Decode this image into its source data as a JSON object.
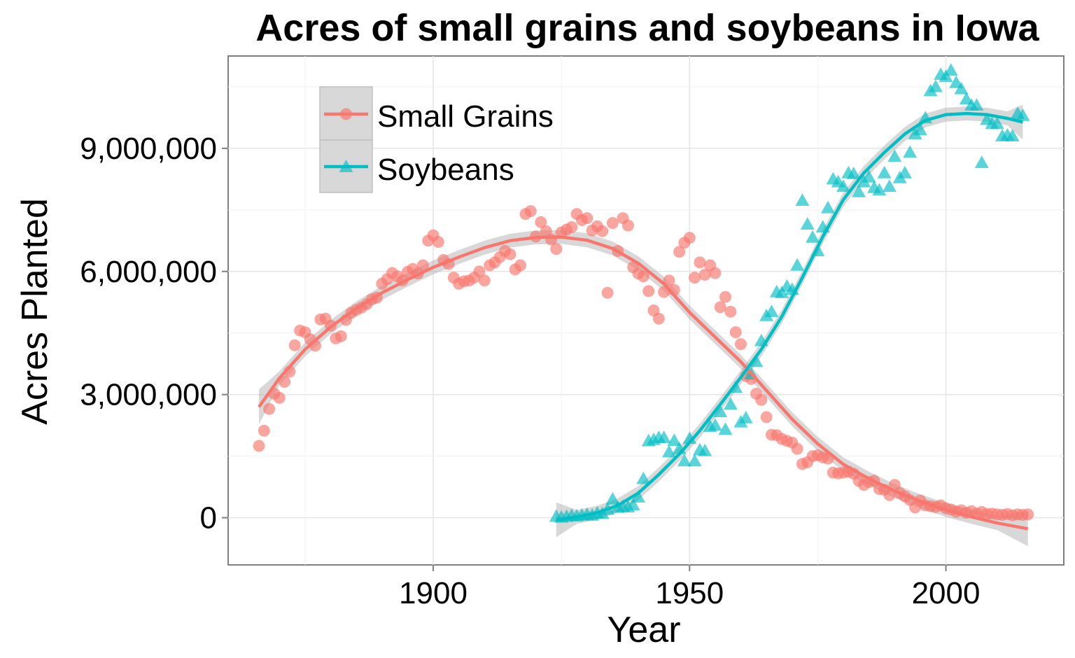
{
  "chart_data": {
    "type": "scatter",
    "title": "Acres of small grains and soybeans in Iowa",
    "xlabel": "Year",
    "ylabel": "Acres Planted",
    "xlim": [
      1860,
      2023
    ],
    "ylim": [
      -1150000,
      11250000
    ],
    "x_ticks": [
      1900,
      1950,
      2000
    ],
    "x_tick_labels": [
      "1900",
      "1950",
      "2000"
    ],
    "y_ticks": [
      0,
      3000000,
      6000000,
      9000000
    ],
    "y_tick_labels": [
      "0",
      "3,000,000",
      "6,000,000",
      "9,000,000"
    ],
    "grid": true,
    "legend_position": "top-left",
    "series": [
      {
        "name": "Small Grains",
        "color": "#F8766D",
        "marker": "circle",
        "points": [
          [
            1866,
            1750000
          ],
          [
            1867,
            2120000
          ],
          [
            1868,
            2650000
          ],
          [
            1869,
            3020000
          ],
          [
            1870,
            2920000
          ],
          [
            1871,
            3310000
          ],
          [
            1872,
            3560000
          ],
          [
            1873,
            4200000
          ],
          [
            1874,
            4560000
          ],
          [
            1875,
            4520000
          ],
          [
            1876,
            4350000
          ],
          [
            1877,
            4190000
          ],
          [
            1878,
            4830000
          ],
          [
            1879,
            4850000
          ],
          [
            1880,
            4680000
          ],
          [
            1881,
            4370000
          ],
          [
            1882,
            4420000
          ],
          [
            1883,
            4820000
          ],
          [
            1884,
            4990000
          ],
          [
            1885,
            5060000
          ],
          [
            1886,
            5120000
          ],
          [
            1887,
            5200000
          ],
          [
            1888,
            5320000
          ],
          [
            1889,
            5360000
          ],
          [
            1890,
            5700000
          ],
          [
            1891,
            5810000
          ],
          [
            1892,
            5960000
          ],
          [
            1893,
            5880000
          ],
          [
            1894,
            5780000
          ],
          [
            1895,
            5990000
          ],
          [
            1896,
            6060000
          ],
          [
            1897,
            5950000
          ],
          [
            1898,
            6150000
          ],
          [
            1899,
            6750000
          ],
          [
            1900,
            6880000
          ],
          [
            1901,
            6720000
          ],
          [
            1902,
            6280000
          ],
          [
            1903,
            6180000
          ],
          [
            1904,
            5850000
          ],
          [
            1905,
            5700000
          ],
          [
            1906,
            5760000
          ],
          [
            1907,
            5780000
          ],
          [
            1908,
            5850000
          ],
          [
            1909,
            6000000
          ],
          [
            1910,
            5780000
          ],
          [
            1911,
            6150000
          ],
          [
            1912,
            6220000
          ],
          [
            1913,
            6350000
          ],
          [
            1914,
            6500000
          ],
          [
            1915,
            6420000
          ],
          [
            1916,
            6050000
          ],
          [
            1917,
            6150000
          ],
          [
            1918,
            7400000
          ],
          [
            1919,
            7470000
          ],
          [
            1920,
            6850000
          ],
          [
            1921,
            7200000
          ],
          [
            1922,
            6980000
          ],
          [
            1923,
            6780000
          ],
          [
            1924,
            6550000
          ],
          [
            1925,
            6950000
          ],
          [
            1926,
            7020000
          ],
          [
            1927,
            7080000
          ],
          [
            1928,
            7400000
          ],
          [
            1929,
            7250000
          ],
          [
            1930,
            7300000
          ],
          [
            1931,
            7000000
          ],
          [
            1932,
            7100000
          ],
          [
            1933,
            6980000
          ],
          [
            1934,
            5480000
          ],
          [
            1935,
            7180000
          ],
          [
            1936,
            6500000
          ],
          [
            1937,
            7300000
          ],
          [
            1938,
            7120000
          ],
          [
            1939,
            6100000
          ],
          [
            1940,
            5950000
          ],
          [
            1941,
            5880000
          ],
          [
            1942,
            5520000
          ],
          [
            1943,
            5050000
          ],
          [
            1944,
            4850000
          ],
          [
            1945,
            5500000
          ],
          [
            1946,
            5780000
          ],
          [
            1947,
            5550000
          ],
          [
            1948,
            6480000
          ],
          [
            1949,
            6700000
          ],
          [
            1950,
            6820000
          ],
          [
            1951,
            5850000
          ],
          [
            1952,
            6220000
          ],
          [
            1953,
            5920000
          ],
          [
            1954,
            6150000
          ],
          [
            1955,
            5960000
          ],
          [
            1956,
            5130000
          ],
          [
            1957,
            5380000
          ],
          [
            1958,
            5020000
          ],
          [
            1959,
            4520000
          ],
          [
            1960,
            4230000
          ],
          [
            1961,
            3450000
          ],
          [
            1962,
            3380000
          ],
          [
            1963,
            3020000
          ],
          [
            1964,
            2870000
          ],
          [
            1965,
            2450000
          ],
          [
            1966,
            2020000
          ],
          [
            1967,
            2010000
          ],
          [
            1968,
            1920000
          ],
          [
            1969,
            1870000
          ],
          [
            1970,
            1830000
          ],
          [
            1971,
            1680000
          ],
          [
            1972,
            1310000
          ],
          [
            1973,
            1350000
          ],
          [
            1974,
            1500000
          ],
          [
            1975,
            1520000
          ],
          [
            1976,
            1470000
          ],
          [
            1977,
            1440000
          ],
          [
            1978,
            1100000
          ],
          [
            1979,
            1080000
          ],
          [
            1980,
            1100000
          ],
          [
            1981,
            1120000
          ],
          [
            1982,
            1070000
          ],
          [
            1983,
            900000
          ],
          [
            1984,
            800000
          ],
          [
            1985,
            870000
          ],
          [
            1986,
            900000
          ],
          [
            1987,
            700000
          ],
          [
            1988,
            680000
          ],
          [
            1989,
            550000
          ],
          [
            1990,
            800000
          ],
          [
            1991,
            600000
          ],
          [
            1992,
            520000
          ],
          [
            1993,
            430000
          ],
          [
            1994,
            250000
          ],
          [
            1995,
            420000
          ],
          [
            1996,
            300000
          ],
          [
            1997,
            280000
          ],
          [
            1998,
            260000
          ],
          [
            1999,
            300000
          ],
          [
            2000,
            230000
          ],
          [
            2001,
            200000
          ],
          [
            2002,
            150000
          ],
          [
            2003,
            180000
          ],
          [
            2004,
            120000
          ],
          [
            2005,
            160000
          ],
          [
            2006,
            100000
          ],
          [
            2007,
            140000
          ],
          [
            2008,
            90000
          ],
          [
            2009,
            100000
          ],
          [
            2010,
            80000
          ],
          [
            2011,
            70000
          ],
          [
            2012,
            90000
          ],
          [
            2013,
            60000
          ],
          [
            2014,
            80000
          ],
          [
            2015,
            70000
          ],
          [
            2016,
            80000
          ]
        ],
        "trend": [
          [
            1866,
            2700000
          ],
          [
            1870,
            3400000
          ],
          [
            1875,
            4100000
          ],
          [
            1880,
            4650000
          ],
          [
            1885,
            5100000
          ],
          [
            1890,
            5480000
          ],
          [
            1895,
            5800000
          ],
          [
            1900,
            6100000
          ],
          [
            1905,
            6350000
          ],
          [
            1910,
            6580000
          ],
          [
            1915,
            6750000
          ],
          [
            1920,
            6830000
          ],
          [
            1925,
            6840000
          ],
          [
            1930,
            6760000
          ],
          [
            1935,
            6560000
          ],
          [
            1940,
            6200000
          ],
          [
            1945,
            5700000
          ],
          [
            1950,
            5000000
          ],
          [
            1955,
            4400000
          ],
          [
            1960,
            3800000
          ],
          [
            1965,
            3100000
          ],
          [
            1970,
            2400000
          ],
          [
            1975,
            1800000
          ],
          [
            1980,
            1300000
          ],
          [
            1985,
            950000
          ],
          [
            1990,
            650000
          ],
          [
            1995,
            400000
          ],
          [
            2000,
            190000
          ],
          [
            2005,
            20000
          ],
          [
            2010,
            -130000
          ],
          [
            2016,
            -270000
          ]
        ]
      },
      {
        "name": "Soybeans",
        "color": "#00BFC4",
        "marker": "triangle",
        "points": [
          [
            1924,
            30000
          ],
          [
            1925,
            10000
          ],
          [
            1926,
            30000
          ],
          [
            1927,
            50000
          ],
          [
            1928,
            40000
          ],
          [
            1929,
            60000
          ],
          [
            1930,
            80000
          ],
          [
            1931,
            60000
          ],
          [
            1932,
            110000
          ],
          [
            1933,
            100000
          ],
          [
            1934,
            200000
          ],
          [
            1935,
            450000
          ],
          [
            1936,
            250000
          ],
          [
            1937,
            270000
          ],
          [
            1938,
            260000
          ],
          [
            1939,
            310000
          ],
          [
            1940,
            500000
          ],
          [
            1941,
            950000
          ],
          [
            1942,
            1870000
          ],
          [
            1943,
            1900000
          ],
          [
            1944,
            1950000
          ],
          [
            1945,
            1950000
          ],
          [
            1946,
            1600000
          ],
          [
            1947,
            1880000
          ],
          [
            1948,
            1680000
          ],
          [
            1949,
            1380000
          ],
          [
            1950,
            1930000
          ],
          [
            1951,
            1380000
          ],
          [
            1952,
            1650000
          ],
          [
            1953,
            1630000
          ],
          [
            1954,
            2220000
          ],
          [
            1955,
            2250000
          ],
          [
            1956,
            2580000
          ],
          [
            1957,
            2150000
          ],
          [
            1958,
            2760000
          ],
          [
            1959,
            3170000
          ],
          [
            1960,
            2330000
          ],
          [
            1961,
            2430000
          ],
          [
            1962,
            3500000
          ],
          [
            1963,
            3800000
          ],
          [
            1964,
            4310000
          ],
          [
            1965,
            4920000
          ],
          [
            1966,
            5020000
          ],
          [
            1967,
            5500000
          ],
          [
            1968,
            5480000
          ],
          [
            1969,
            5640000
          ],
          [
            1970,
            5560000
          ],
          [
            1971,
            6150000
          ],
          [
            1972,
            7730000
          ],
          [
            1973,
            7150000
          ],
          [
            1974,
            6830000
          ],
          [
            1975,
            6500000
          ],
          [
            1976,
            7080000
          ],
          [
            1977,
            7550000
          ],
          [
            1978,
            8250000
          ],
          [
            1979,
            8180000
          ],
          [
            1980,
            8070000
          ],
          [
            1981,
            8400000
          ],
          [
            1982,
            8380000
          ],
          [
            1983,
            7940000
          ],
          [
            1984,
            8180000
          ],
          [
            1985,
            8300000
          ],
          [
            1986,
            8040000
          ],
          [
            1987,
            7980000
          ],
          [
            1988,
            8400000
          ],
          [
            1989,
            8070000
          ],
          [
            1990,
            8800000
          ],
          [
            1991,
            8280000
          ],
          [
            1992,
            8400000
          ],
          [
            1993,
            8900000
          ],
          [
            1994,
            9350000
          ],
          [
            1995,
            9450000
          ],
          [
            1996,
            9740000
          ],
          [
            1997,
            10400000
          ],
          [
            1998,
            10500000
          ],
          [
            1999,
            10800000
          ],
          [
            2000,
            10750000
          ],
          [
            2001,
            10900000
          ],
          [
            2002,
            10600000
          ],
          [
            2003,
            10450000
          ],
          [
            2004,
            10200000
          ],
          [
            2005,
            10050000
          ],
          [
            2006,
            10050000
          ],
          [
            2007,
            8650000
          ],
          [
            2008,
            9700000
          ],
          [
            2009,
            9600000
          ],
          [
            2010,
            9600000
          ],
          [
            2011,
            9300000
          ],
          [
            2012,
            9320000
          ],
          [
            2013,
            9300000
          ],
          [
            2014,
            9850000
          ],
          [
            2015,
            9800000
          ]
        ],
        "trend": [
          [
            1924,
            -50000
          ],
          [
            1928,
            20000
          ],
          [
            1932,
            120000
          ],
          [
            1936,
            300000
          ],
          [
            1940,
            600000
          ],
          [
            1944,
            1050000
          ],
          [
            1948,
            1550000
          ],
          [
            1952,
            2120000
          ],
          [
            1956,
            2760000
          ],
          [
            1960,
            3420000
          ],
          [
            1964,
            4100000
          ],
          [
            1968,
            4900000
          ],
          [
            1972,
            5850000
          ],
          [
            1976,
            6850000
          ],
          [
            1980,
            7750000
          ],
          [
            1984,
            8400000
          ],
          [
            1988,
            8900000
          ],
          [
            1992,
            9350000
          ],
          [
            1996,
            9680000
          ],
          [
            2000,
            9820000
          ],
          [
            2004,
            9850000
          ],
          [
            2008,
            9820000
          ],
          [
            2012,
            9730000
          ],
          [
            2015,
            9640000
          ]
        ]
      }
    ]
  }
}
